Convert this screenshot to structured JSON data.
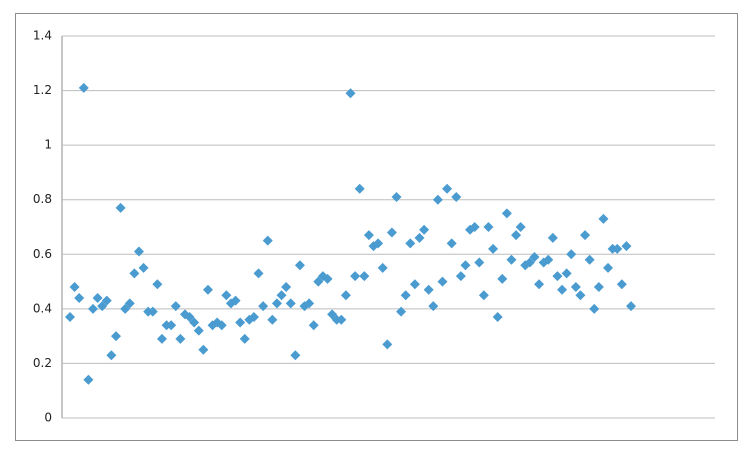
{
  "chart_data": {
    "type": "scatter",
    "values": [
      0.37,
      0.48,
      0.44,
      1.21,
      0.14,
      0.4,
      0.44,
      0.41,
      0.43,
      0.23,
      0.3,
      0.77,
      0.4,
      0.42,
      0.53,
      0.61,
      0.55,
      0.39,
      0.39,
      0.49,
      0.29,
      0.34,
      0.34,
      0.41,
      0.29,
      0.38,
      0.37,
      0.35,
      0.32,
      0.25,
      0.47,
      0.34,
      0.35,
      0.34,
      0.45,
      0.42,
      0.43,
      0.35,
      0.29,
      0.36,
      0.37,
      0.53,
      0.41,
      0.65,
      0.36,
      0.42,
      0.45,
      0.48,
      0.42,
      0.23,
      0.56,
      0.41,
      0.42,
      0.34,
      0.5,
      0.52,
      0.51,
      0.38,
      0.36,
      0.36,
      0.45,
      1.19,
      0.52,
      0.84,
      0.52,
      0.67,
      0.63,
      0.64,
      0.55,
      0.27,
      0.68,
      0.81,
      0.39,
      0.45,
      0.64,
      0.49,
      0.66,
      0.69,
      0.47,
      0.41,
      0.8,
      0.5,
      0.84,
      0.64,
      0.81,
      0.52,
      0.56,
      0.69,
      0.7,
      0.57,
      0.45,
      0.7,
      0.62,
      0.37,
      0.51,
      0.75,
      0.58,
      0.67,
      0.7,
      0.56,
      0.57,
      0.59,
      0.49,
      0.57,
      0.58,
      0.66,
      0.52,
      0.47,
      0.53,
      0.6,
      0.48,
      0.45,
      0.67,
      0.58,
      0.4,
      0.48,
      0.73,
      0.55,
      0.62,
      0.62,
      0.49,
      0.63,
      0.41
    ],
    "color": "#4a9bd0",
    "ylim": [
      0,
      1.4
    ],
    "yticks": [
      0,
      0.2,
      0.4,
      0.6,
      0.8,
      1,
      1.2,
      1.4
    ],
    "grid": true
  }
}
